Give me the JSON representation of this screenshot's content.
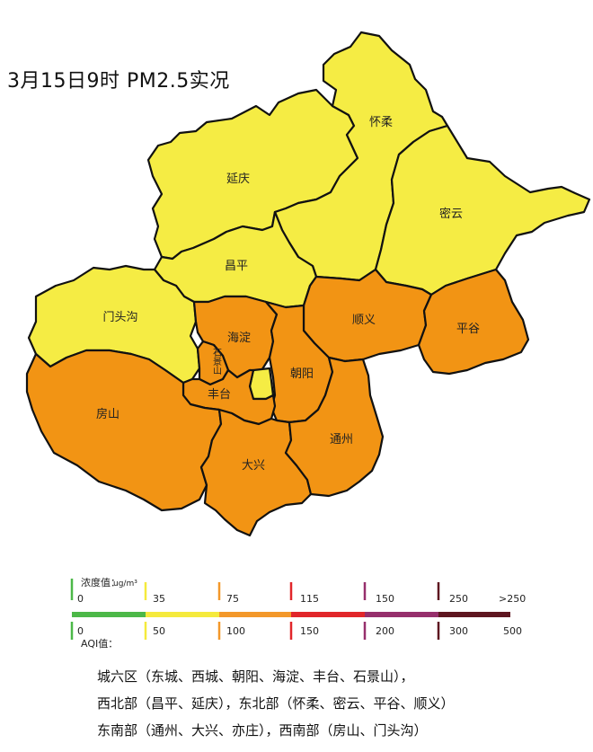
{
  "title": "3月15日9时 PM2.5实况",
  "colors": {
    "good": "#4CB848",
    "moderate": "#F5EA3C",
    "light": "#F3982A",
    "medium": "#E1262A",
    "heavy": "#962F6C",
    "severe": "#5E1620",
    "district_yellow": "#F5EC44",
    "district_orange": "#F29414"
  },
  "districts": [
    {
      "key": "yanqing",
      "name": "延庆",
      "level": "moderate"
    },
    {
      "key": "huairou",
      "name": "怀柔",
      "level": "moderate"
    },
    {
      "key": "miyun",
      "name": "密云",
      "level": "moderate"
    },
    {
      "key": "changping",
      "name": "昌平",
      "level": "moderate"
    },
    {
      "key": "mentougou",
      "name": "门头沟",
      "level": "moderate"
    },
    {
      "key": "shunyi",
      "name": "顺义",
      "level": "light"
    },
    {
      "key": "pinggu",
      "name": "平谷",
      "level": "light"
    },
    {
      "key": "haidian",
      "name": "海淀",
      "level": "light"
    },
    {
      "key": "shijingshan",
      "name": "石景山",
      "level": "light"
    },
    {
      "key": "chaoyang",
      "name": "朝阳",
      "level": "light"
    },
    {
      "key": "fengtai",
      "name": "丰台",
      "level": "light"
    },
    {
      "key": "fangshan",
      "name": "房山",
      "level": "light"
    },
    {
      "key": "tongzhou",
      "name": "通州",
      "level": "light"
    },
    {
      "key": "daxing",
      "name": "大兴",
      "level": "light"
    },
    {
      "key": "dongcheng_xicheng",
      "name": "",
      "level": "moderate"
    }
  ],
  "legend": {
    "conc_label": "浓度值：",
    "conc_unit": "ug/m³",
    "aqi_label": "AQI值：",
    "conc_ticks": [
      "0",
      "35",
      "75",
      "115",
      "150",
      "250",
      ">250"
    ],
    "aqi_ticks": [
      "0",
      "50",
      "100",
      "150",
      "200",
      "300",
      "500"
    ],
    "segment_levels": [
      "good",
      "moderate",
      "light",
      "medium",
      "heavy",
      "severe"
    ]
  },
  "notes": [
    "城六区（东城、西城、朝阳、海淀、丰台、石景山），",
    "西北部（昌平、延庆），东北部（怀柔、密云、平谷、顺义）",
    "东南部（通州、大兴、亦庄），西南部（房山、门头沟）"
  ]
}
